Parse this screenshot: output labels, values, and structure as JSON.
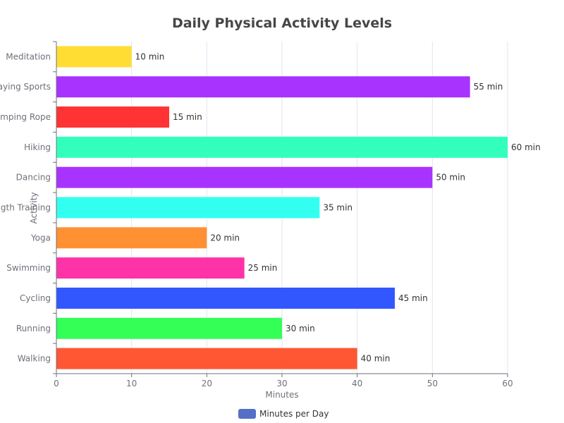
{
  "chart_data": {
    "type": "bar",
    "orientation": "horizontal",
    "title": "Daily Physical Activity Levels",
    "xlabel": "Minutes",
    "ylabel": "Activity",
    "xlim": [
      0,
      60
    ],
    "x_ticks": [
      0,
      10,
      20,
      30,
      40,
      50,
      60
    ],
    "grid": true,
    "legend": {
      "position": "bottom-center",
      "entries": [
        {
          "name": "Minutes per Day",
          "color": "#5470c6"
        }
      ]
    },
    "categories": [
      "Walking",
      "Running",
      "Cycling",
      "Swimming",
      "Yoga",
      "Strength Training",
      "Dancing",
      "Hiking",
      "Jumping Rope",
      "Playing Sports",
      "Meditation"
    ],
    "series": [
      {
        "name": "Minutes per Day",
        "values": [
          40,
          30,
          45,
          25,
          20,
          35,
          50,
          60,
          15,
          55,
          10
        ],
        "colors": [
          "#ff5733",
          "#33ff57",
          "#3357ff",
          "#ff33a8",
          "#ff9133",
          "#33fff0",
          "#a833ff",
          "#33ffbd",
          "#ff3333",
          "#a833ff",
          "#ffdd33"
        ],
        "data_labels": [
          "40 min",
          "30 min",
          "45 min",
          "25 min",
          "20 min",
          "35 min",
          "50 min",
          "60 min",
          "15 min",
          "55 min",
          "10 min"
        ]
      }
    ]
  }
}
